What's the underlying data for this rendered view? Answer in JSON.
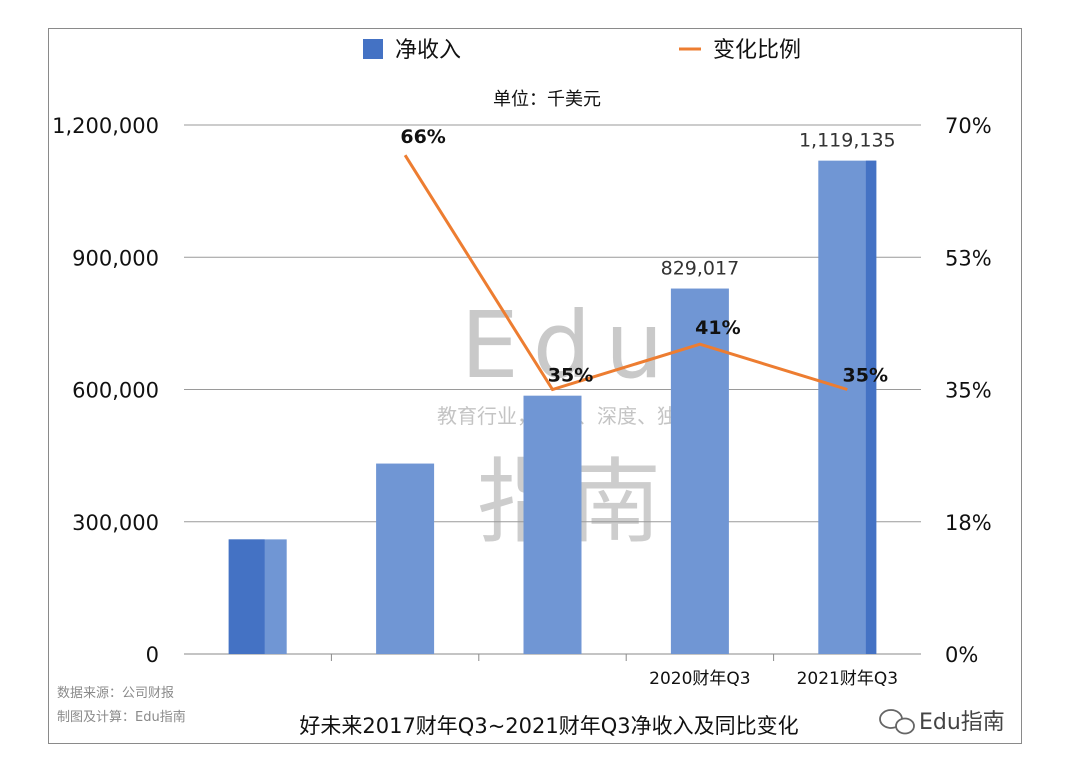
{
  "chart_data": {
    "type": "bar+line",
    "legend": [
      {
        "label": "净收入",
        "kind": "bar",
        "color": "#4472c4"
      },
      {
        "label": "变化比例",
        "kind": "line",
        "color": "#ed7d31"
      }
    ],
    "unit_note": "单位：千美元",
    "categories": [
      "",
      "",
      "",
      "2020财年Q3",
      "2021财年Q3"
    ],
    "series": [
      {
        "name": "净收入",
        "axis": "left",
        "values": [
          260000,
          432000,
          586000,
          829017,
          1119135
        ],
        "data_labels": [
          "",
          "",
          "",
          "829,017",
          "1,119,135"
        ]
      },
      {
        "name": "变化比例",
        "axis": "right",
        "values": [
          null,
          66,
          35,
          41,
          35
        ],
        "data_labels": [
          "",
          "66%",
          "35%",
          "41%",
          "35%"
        ]
      }
    ],
    "y_left": {
      "min": 0,
      "max": 1200000,
      "ticks": [
        0,
        300000,
        600000,
        900000,
        1200000
      ],
      "tick_labels": [
        "0",
        "300,000",
        "600,000",
        "900,000",
        "1,200,000"
      ]
    },
    "y_right": {
      "min": 0,
      "max": 70,
      "tick_labels": [
        "0%",
        "18%",
        "35%",
        "53%",
        "70%"
      ]
    },
    "grid": true,
    "legend_position": "top"
  },
  "source_lines": [
    "数据来源：公司财报",
    "制图及计算：Edu指南"
  ],
  "caption": "好未来2017财年Q3~2021财年Q3净收入及同比变化",
  "watermark": {
    "big_text": "Edu",
    "sub_text": "教育行业，前沿、深度、独家",
    "cn_text": "指南"
  },
  "badge": "Edu指南",
  "colors": {
    "bar": "#7096d4",
    "bar_dark": "#4472c4",
    "line": "#ed7d31",
    "grid": "#9a9a9a"
  }
}
